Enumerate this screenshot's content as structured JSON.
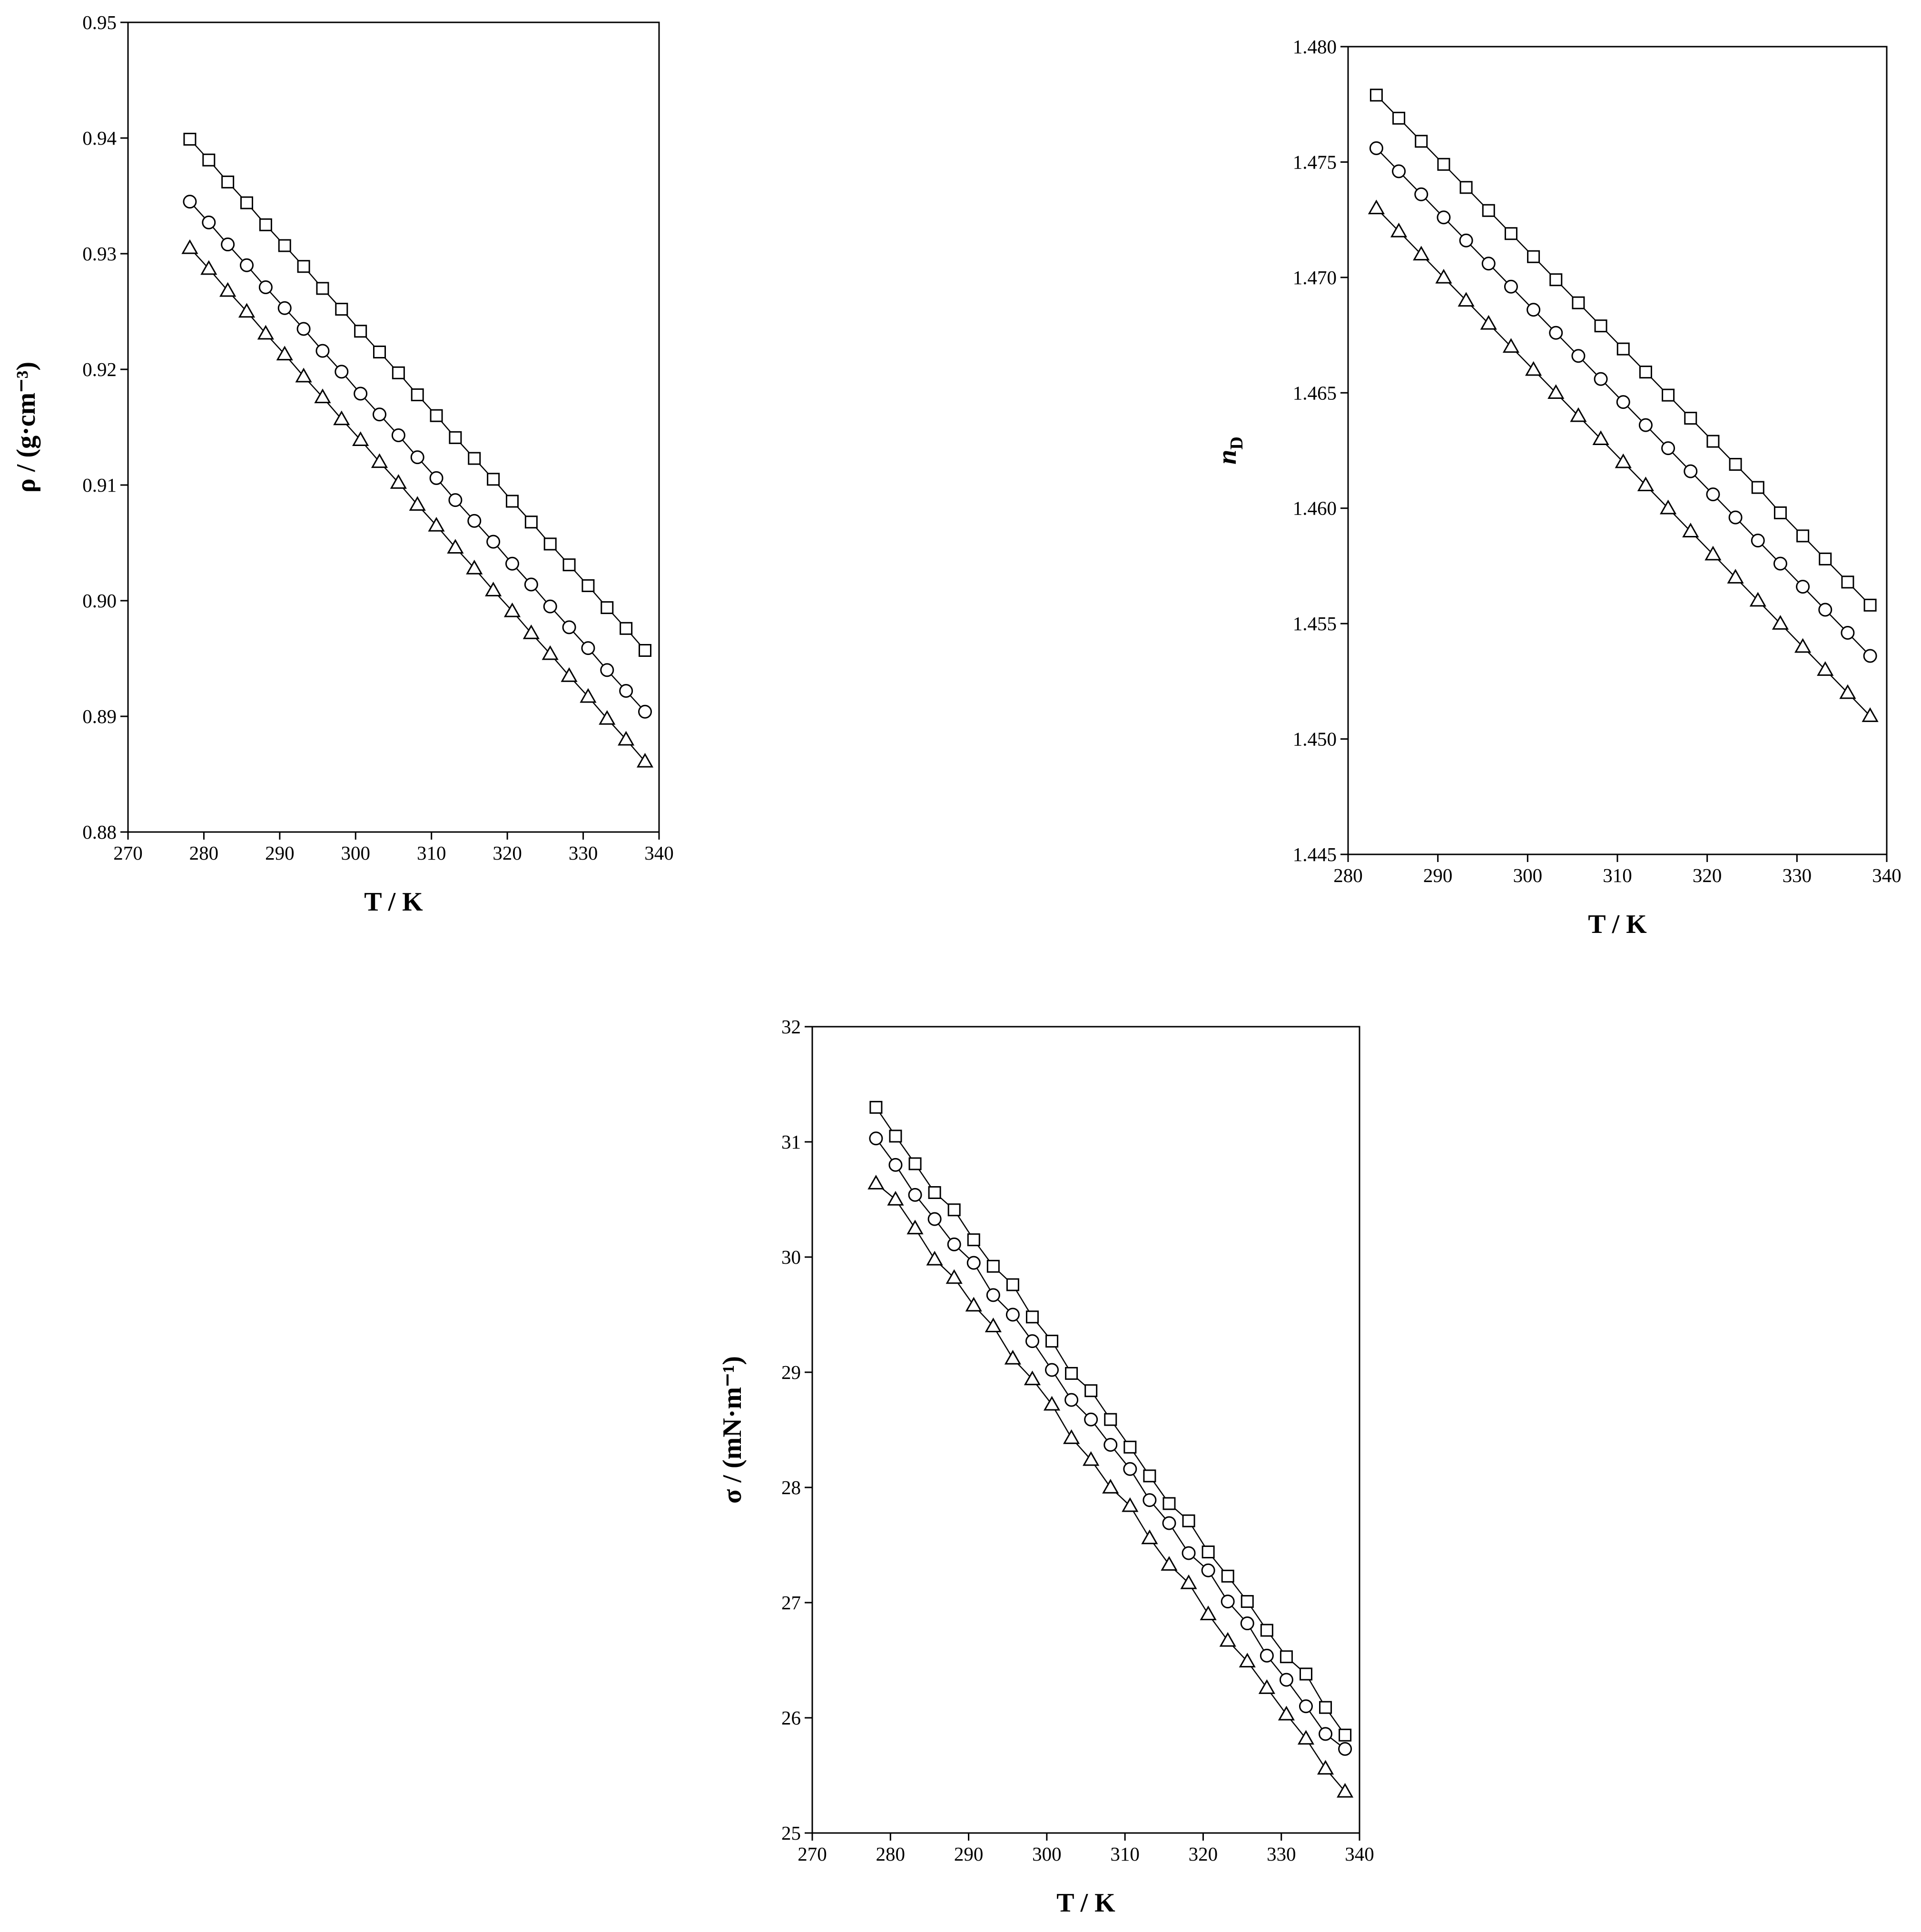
{
  "chart_data": [
    {
      "type": "scatter-line",
      "xlabel": "T / K",
      "ylabel": "ρ / (g·cm⁻³)",
      "xlim": [
        270,
        340
      ],
      "xticks": [
        270,
        280,
        290,
        300,
        310,
        320,
        330,
        340
      ],
      "ylim": [
        0.88,
        0.95
      ],
      "yticks": [
        {
          "value": 0.88,
          "label": "0.88"
        },
        {
          "value": 0.89,
          "label": "0.89"
        },
        {
          "value": 0.9,
          "label": "0.90"
        },
        {
          "value": 0.91,
          "label": "0.91"
        },
        {
          "value": 0.92,
          "label": "0.92"
        },
        {
          "value": 0.93,
          "label": "0.93"
        },
        {
          "value": 0.94,
          "label": "0.94"
        },
        {
          "value": 0.95,
          "label": "0.95"
        }
      ],
      "x": [
        278.15,
        280.65,
        283.15,
        285.65,
        288.15,
        290.65,
        293.15,
        295.65,
        298.15,
        300.65,
        303.15,
        305.65,
        308.15,
        310.65,
        313.15,
        315.65,
        318.15,
        320.65,
        323.15,
        325.65,
        328.15,
        330.65,
        333.15,
        335.65,
        338.15
      ],
      "series": [
        {
          "marker": "square",
          "color": "#000000",
          "values": [
            0.9399,
            0.9381,
            0.9362,
            0.9344,
            0.9325,
            0.9307,
            0.9289,
            0.927,
            0.9252,
            0.9233,
            0.9215,
            0.9197,
            0.9178,
            0.916,
            0.9141,
            0.9123,
            0.9105,
            0.9086,
            0.9068,
            0.9049,
            0.9031,
            0.9013,
            0.8994,
            0.8976,
            0.8957
          ]
        },
        {
          "marker": "circle",
          "color": "#000000",
          "values": [
            0.9345,
            0.9327,
            0.9308,
            0.929,
            0.9271,
            0.9253,
            0.9235,
            0.9216,
            0.9198,
            0.9179,
            0.9161,
            0.9143,
            0.9124,
            0.9106,
            0.9087,
            0.9069,
            0.9051,
            0.9032,
            0.9014,
            0.8995,
            0.8977,
            0.8959,
            0.894,
            0.8922,
            0.8904
          ]
        },
        {
          "marker": "triangle",
          "color": "#000000",
          "values": [
            0.9305,
            0.9287,
            0.9268,
            0.925,
            0.9231,
            0.9213,
            0.9194,
            0.9176,
            0.9157,
            0.9139,
            0.912,
            0.9102,
            0.9083,
            0.9065,
            0.9046,
            0.9028,
            0.9009,
            0.8991,
            0.8972,
            0.8954,
            0.8935,
            0.8917,
            0.8898,
            0.888,
            0.8861
          ]
        }
      ]
    },
    {
      "type": "scatter-line",
      "xlabel": "T / K",
      "ylabel": "n",
      "ylabel_subscript": "D",
      "xlim": [
        280,
        340
      ],
      "xticks": [
        280,
        290,
        300,
        310,
        320,
        330,
        340
      ],
      "ylim": [
        1.445,
        1.48
      ],
      "yticks": [
        1.445,
        {
          "value": 1.45,
          "label": "1.450"
        },
        1.455,
        {
          "value": 1.46,
          "label": "1.460"
        },
        1.465,
        {
          "value": 1.47,
          "label": "1.470"
        },
        1.475,
        {
          "value": 1.48,
          "label": "1.480"
        }
      ],
      "x": [
        283.15,
        285.65,
        288.15,
        290.65,
        293.15,
        295.65,
        298.15,
        300.65,
        303.15,
        305.65,
        308.15,
        310.65,
        313.15,
        315.65,
        318.15,
        320.65,
        323.15,
        325.65,
        328.15,
        330.65,
        333.15,
        335.65,
        338.15
      ],
      "series": [
        {
          "marker": "square",
          "color": "#000000",
          "values": [
            1.4779,
            1.4769,
            1.4759,
            1.4749,
            1.4739,
            1.4729,
            1.4719,
            1.4709,
            1.4699,
            1.4689,
            1.4679,
            1.4669,
            1.4659,
            1.4649,
            1.4639,
            1.4629,
            1.4619,
            1.4609,
            1.4598,
            1.4588,
            1.4578,
            1.4568,
            1.4558
          ]
        },
        {
          "marker": "circle",
          "color": "#000000",
          "values": [
            1.4756,
            1.4746,
            1.4736,
            1.4726,
            1.4716,
            1.4706,
            1.4696,
            1.4686,
            1.4676,
            1.4666,
            1.4656,
            1.4646,
            1.4636,
            1.4626,
            1.4616,
            1.4606,
            1.4596,
            1.4586,
            1.4576,
            1.4566,
            1.4556,
            1.4546,
            1.4536
          ]
        },
        {
          "marker": "triangle",
          "color": "#000000",
          "values": [
            1.473,
            1.472,
            1.471,
            1.47,
            1.469,
            1.468,
            1.467,
            1.466,
            1.465,
            1.464,
            1.463,
            1.462,
            1.461,
            1.46,
            1.459,
            1.458,
            1.457,
            1.456,
            1.455,
            1.454,
            1.453,
            1.452,
            1.451
          ]
        }
      ]
    },
    {
      "type": "scatter-line",
      "xlabel": "T / K",
      "ylabel": "σ / (mN·m⁻¹)",
      "xlim": [
        270,
        340
      ],
      "xticks": [
        270,
        280,
        290,
        300,
        310,
        320,
        330,
        340
      ],
      "ylim": [
        25,
        32
      ],
      "yticks": [
        25,
        26,
        27,
        28,
        29,
        30,
        31,
        32
      ],
      "x": [
        278.15,
        280.65,
        283.15,
        285.65,
        288.15,
        290.65,
        293.15,
        295.65,
        298.15,
        300.65,
        303.15,
        305.65,
        308.15,
        310.65,
        313.15,
        315.65,
        318.15,
        320.65,
        323.15,
        325.65,
        328.15,
        330.65,
        333.15,
        335.65,
        338.15
      ],
      "series": [
        {
          "marker": "square",
          "color": "#000000",
          "values": [
            31.3,
            31.05,
            30.81,
            30.56,
            30.41,
            30.15,
            29.92,
            29.76,
            29.48,
            29.27,
            28.99,
            28.84,
            28.59,
            28.35,
            28.1,
            27.86,
            27.71,
            27.44,
            27.23,
            27.01,
            26.76,
            26.53,
            26.38,
            26.09,
            25.85
          ]
        },
        {
          "marker": "circle",
          "color": "#000000",
          "values": [
            31.03,
            30.8,
            30.54,
            30.33,
            30.11,
            29.95,
            29.67,
            29.5,
            29.27,
            29.02,
            28.76,
            28.59,
            28.37,
            28.16,
            27.89,
            27.69,
            27.43,
            27.28,
            27.01,
            26.82,
            26.54,
            26.33,
            26.1,
            25.86,
            25.73
          ]
        },
        {
          "marker": "triangle",
          "color": "#000000",
          "values": [
            30.64,
            30.5,
            30.25,
            29.98,
            29.82,
            29.58,
            29.4,
            29.12,
            28.94,
            28.72,
            28.43,
            28.24,
            28.0,
            27.84,
            27.56,
            27.33,
            27.17,
            26.9,
            26.67,
            26.49,
            26.26,
            26.03,
            25.82,
            25.56,
            25.36
          ]
        }
      ]
    }
  ]
}
